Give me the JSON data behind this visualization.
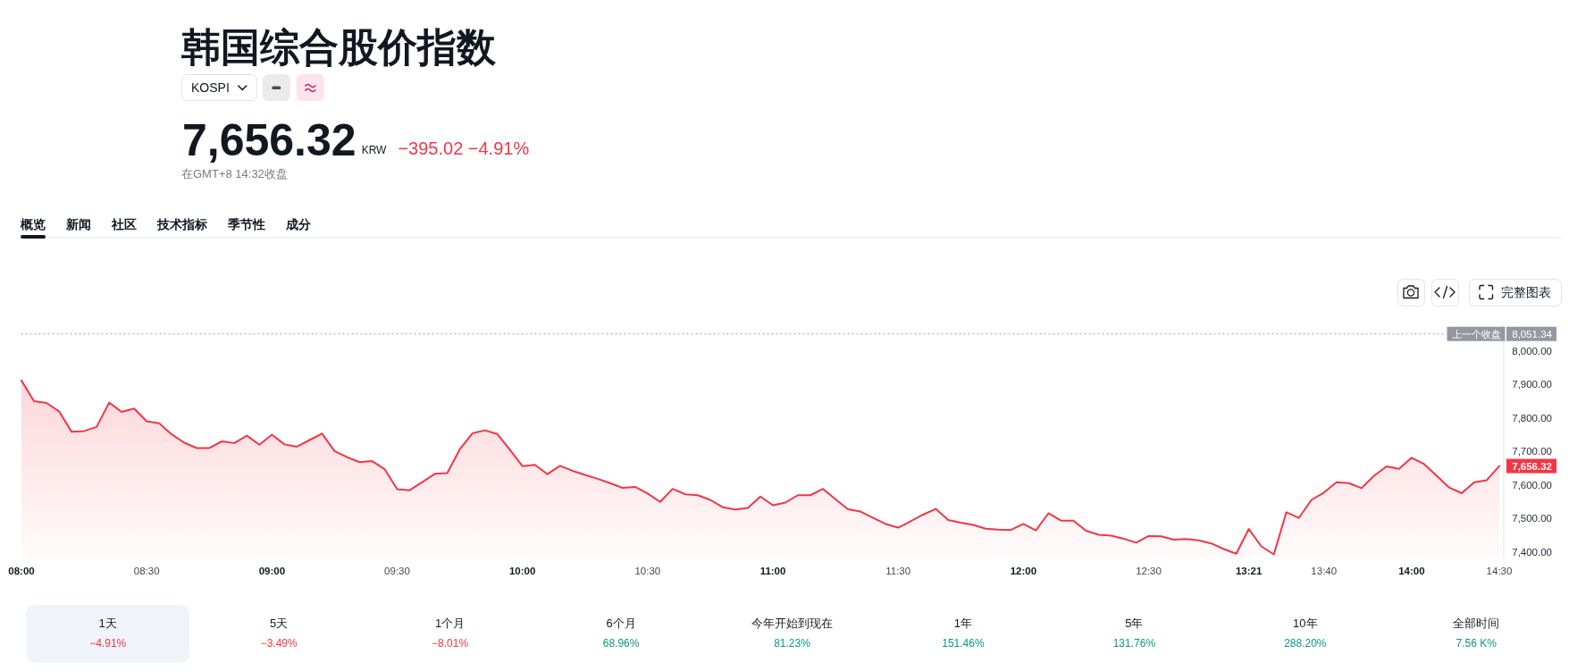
{
  "chart_data": {
    "type": "area",
    "title": "韩国综合股价指数",
    "categories": [
      "08:00",
      null,
      null,
      null,
      null,
      null,
      null,
      null,
      null,
      null,
      "08:30",
      null,
      null,
      null,
      null,
      null,
      null,
      null,
      null,
      null,
      "09:00",
      null,
      null,
      null,
      null,
      null,
      null,
      null,
      null,
      null,
      "09:30",
      null,
      null,
      null,
      null,
      null,
      null,
      null,
      null,
      null,
      "10:00",
      null,
      null,
      null,
      null,
      null,
      null,
      null,
      null,
      null,
      "10:30",
      null,
      null,
      null,
      null,
      null,
      null,
      null,
      null,
      null,
      "11:00",
      null,
      null,
      null,
      null,
      null,
      null,
      null,
      null,
      null,
      "11:30",
      null,
      null,
      null,
      null,
      null,
      null,
      null,
      null,
      null,
      "12:00",
      null,
      null,
      null,
      null,
      null,
      null,
      null,
      null,
      null,
      "12:30",
      null,
      null,
      null,
      null,
      null,
      null,
      null,
      "13:21",
      null,
      null,
      null,
      null,
      null,
      "13:40",
      null,
      null,
      null,
      null,
      null,
      null,
      "14:00",
      null,
      null,
      null,
      null,
      null,
      null,
      "14:30"
    ],
    "series": [
      {
        "color": "#f23645",
        "values": [
          7912,
          7850,
          7845,
          7820,
          7759,
          7761,
          7773,
          7846,
          7818,
          7828,
          7790,
          7784,
          7751,
          7726,
          7710,
          7710,
          7730,
          7725,
          7747,
          7720,
          7750,
          7721,
          7714,
          7734,
          7753,
          7701,
          7683,
          7668,
          7671,
          7647,
          7587,
          7584,
          7608,
          7633,
          7635,
          7706,
          7754,
          7763,
          7752,
          7705,
          7656,
          7660,
          7632,
          7657,
          7642,
          7630,
          7618,
          7605,
          7591,
          7594,
          7574,
          7549,
          7588,
          7572,
          7569,
          7555,
          7533,
          7526,
          7531,
          7565,
          7539,
          7547,
          7569,
          7569,
          7588,
          7557,
          7527,
          7520,
          7501,
          7483,
          7472,
          7491,
          7511,
          7528,
          7495,
          7487,
          7480,
          7469,
          7466,
          7465,
          7483,
          7464,
          7515,
          7493,
          7493,
          7463,
          7451,
          7448,
          7439,
          7427,
          7447,
          7446,
          7436,
          7438,
          7434,
          7425,
          7408,
          7394,
          7468,
          7416,
          7392,
          7518,
          7501,
          7555,
          7577,
          7608,
          7605,
          7590,
          7627,
          7655,
          7648,
          7681,
          7662,
          7627,
          7592,
          7575,
          7608,
          7614,
          7656.32
        ],
        "value_labels": [
          null,
          null,
          null,
          null,
          null,
          null,
          null,
          null,
          null,
          null,
          null,
          null,
          null,
          null,
          null,
          null,
          null,
          null,
          null,
          null,
          null,
          null,
          null,
          null,
          null,
          null,
          null,
          null,
          null,
          null,
          null,
          null,
          null,
          null,
          null,
          null,
          null,
          null,
          null,
          null,
          null,
          null,
          null,
          null,
          null,
          null,
          null,
          null,
          null,
          null,
          null,
          null,
          null,
          null,
          null,
          null,
          null,
          null,
          null,
          null,
          null,
          null,
          null,
          null,
          null,
          null,
          null,
          null,
          null,
          null,
          null,
          null,
          null,
          null,
          null,
          null,
          null,
          null,
          null,
          null,
          null,
          null,
          null,
          null,
          null,
          null,
          null,
          null,
          null,
          null,
          null,
          null,
          null,
          null,
          null,
          null,
          null,
          null,
          null,
          null,
          null,
          null,
          null,
          null,
          null,
          null,
          null,
          null,
          null,
          null,
          null,
          null,
          null,
          null,
          null,
          null,
          null,
          null,
          "7,656.32"
        ]
      }
    ],
    "ylim": [
      7380,
      8080
    ],
    "yticks": [
      {
        "value": 7400,
        "label": "7,400.00"
      },
      {
        "value": 7500,
        "label": "7,500.00"
      },
      {
        "value": 7600,
        "label": "7,600.00"
      },
      {
        "value": 7700,
        "label": "7,700.00"
      },
      {
        "value": 7800,
        "label": "7,800.00"
      },
      {
        "value": 7900,
        "label": "7,900.00"
      },
      {
        "value": 8000,
        "label": "8,000.00"
      }
    ],
    "ref_lines": [
      {
        "axis": "y",
        "value": 8051.34,
        "label": "上一个收盘",
        "line_style": "dotted",
        "color": "#9598a1"
      }
    ],
    "annotations": [
      "KOSPI",
      "7,656.32",
      "KRW",
      "−395.02 −4.91%",
      "在GMT+8 14:32收盘",
      "概览",
      "新闻",
      "社区",
      "技术指标",
      "季节性",
      "成分",
      "完整图表",
      "1天",
      "−4.91%",
      "5天",
      "−3.49%",
      "1个月",
      "−8.01%",
      "6个月",
      "68.96%",
      "今年开始到现在",
      "81.23%",
      "1年",
      "151.46%",
      "5年",
      "131.76%",
      "10年",
      "288.20%",
      "全部时间",
      "7.56 K%",
      "8,051.34"
    ]
  }
}
